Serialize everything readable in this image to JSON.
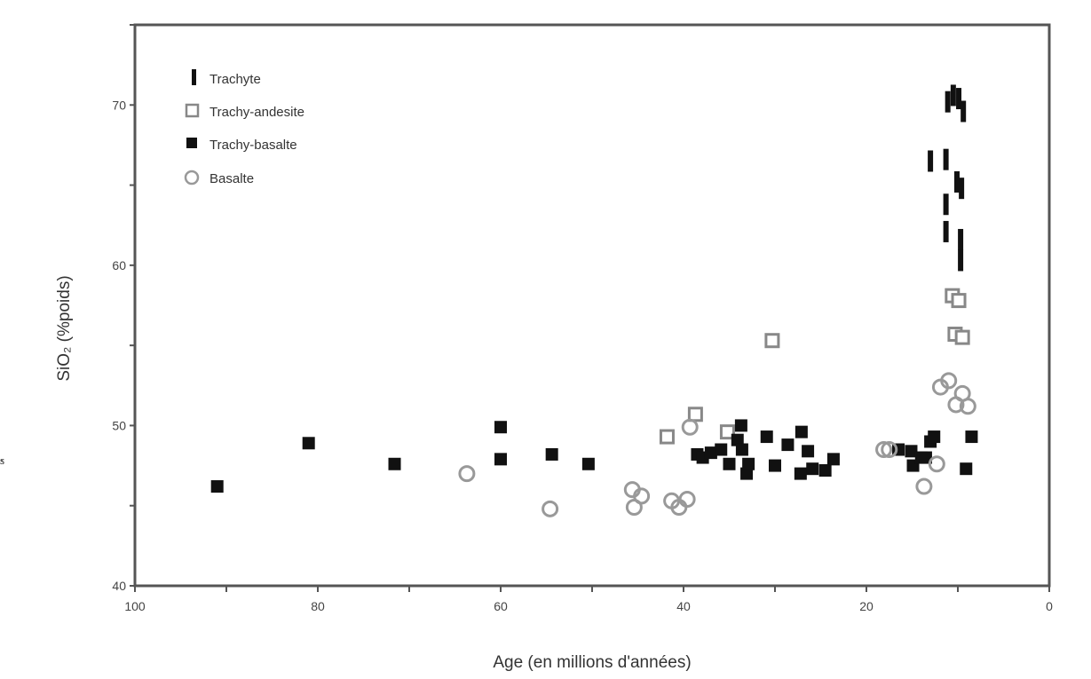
{
  "chart_data": {
    "type": "scatter",
    "title": "",
    "xlabel": "Age (en millions d'années)",
    "ylabel": "SiO₂ (%poids)",
    "xlim": [
      100,
      0
    ],
    "ylim": [
      40,
      75
    ],
    "x_ticks": [
      100,
      80,
      60,
      40,
      20,
      0
    ],
    "y_ticks": [
      40,
      50,
      60,
      70
    ],
    "grid": false,
    "legend_position": "top-left",
    "series": [
      {
        "name": "Trachyte",
        "marker": "bar",
        "color": "#111111",
        "points": [
          [
            11.1,
            70.2
          ],
          [
            10.5,
            70.6
          ],
          [
            9.9,
            70.4
          ],
          [
            9.4,
            69.6
          ],
          [
            13.0,
            66.5
          ],
          [
            11.3,
            66.6
          ],
          [
            10.1,
            65.2
          ],
          [
            11.3,
            63.8
          ],
          [
            9.6,
            64.8
          ],
          [
            11.3,
            62.1
          ],
          [
            9.7,
            61.6
          ],
          [
            9.7,
            60.3
          ]
        ]
      },
      {
        "name": "Trachy-andesite",
        "marker": "square-open",
        "color": "#888888",
        "points": [
          [
            10.6,
            58.1
          ],
          [
            9.9,
            57.8
          ],
          [
            10.3,
            55.7
          ],
          [
            30.3,
            55.3
          ],
          [
            9.5,
            55.5
          ],
          [
            38.7,
            50.7
          ],
          [
            35.2,
            49.6
          ],
          [
            41.8,
            49.3
          ]
        ]
      },
      {
        "name": "Trachy-basalte",
        "marker": "square-filled",
        "color": "#111111",
        "points": [
          [
            91.0,
            46.2
          ],
          [
            81.0,
            48.9
          ],
          [
            71.6,
            47.6
          ],
          [
            60.0,
            49.9
          ],
          [
            60.0,
            47.9
          ],
          [
            54.4,
            48.2
          ],
          [
            50.4,
            47.6
          ],
          [
            38.5,
            48.2
          ],
          [
            37.9,
            48.0
          ],
          [
            37.0,
            48.3
          ],
          [
            35.9,
            48.5
          ],
          [
            35.0,
            47.6
          ],
          [
            34.1,
            49.1
          ],
          [
            33.6,
            48.5
          ],
          [
            33.1,
            47.0
          ],
          [
            33.7,
            50.0
          ],
          [
            32.9,
            47.6
          ],
          [
            30.9,
            49.3
          ],
          [
            30.0,
            47.5
          ],
          [
            28.6,
            48.8
          ],
          [
            27.2,
            47.0
          ],
          [
            27.1,
            49.6
          ],
          [
            26.4,
            48.4
          ],
          [
            25.9,
            47.3
          ],
          [
            24.5,
            47.2
          ],
          [
            23.6,
            47.9
          ],
          [
            16.5,
            48.5
          ],
          [
            15.1,
            48.4
          ],
          [
            14.9,
            47.5
          ],
          [
            14.0,
            48.0
          ],
          [
            13.5,
            48.0
          ],
          [
            13.0,
            49.0
          ],
          [
            12.6,
            49.3
          ],
          [
            9.1,
            47.3
          ],
          [
            8.5,
            49.3
          ]
        ]
      },
      {
        "name": "Basalte",
        "marker": "circle-open",
        "color": "#999999",
        "points": [
          [
            63.7,
            47.0
          ],
          [
            54.6,
            44.8
          ],
          [
            45.4,
            44.9
          ],
          [
            44.6,
            45.6
          ],
          [
            45.6,
            46.0
          ],
          [
            41.3,
            45.3
          ],
          [
            40.5,
            44.9
          ],
          [
            11.0,
            52.8
          ],
          [
            11.9,
            52.4
          ],
          [
            10.2,
            51.3
          ],
          [
            9.5,
            52.0
          ],
          [
            17.5,
            48.5
          ],
          [
            12.3,
            47.6
          ],
          [
            18.1,
            48.5
          ],
          [
            13.7,
            46.2
          ],
          [
            8.9,
            51.2
          ],
          [
            39.6,
            45.4
          ],
          [
            39.3,
            49.9
          ]
        ]
      }
    ]
  },
  "edge_fragments": [
    "s",
    "s",
    "s",
    "s",
    "·",
    "",
    "·"
  ]
}
